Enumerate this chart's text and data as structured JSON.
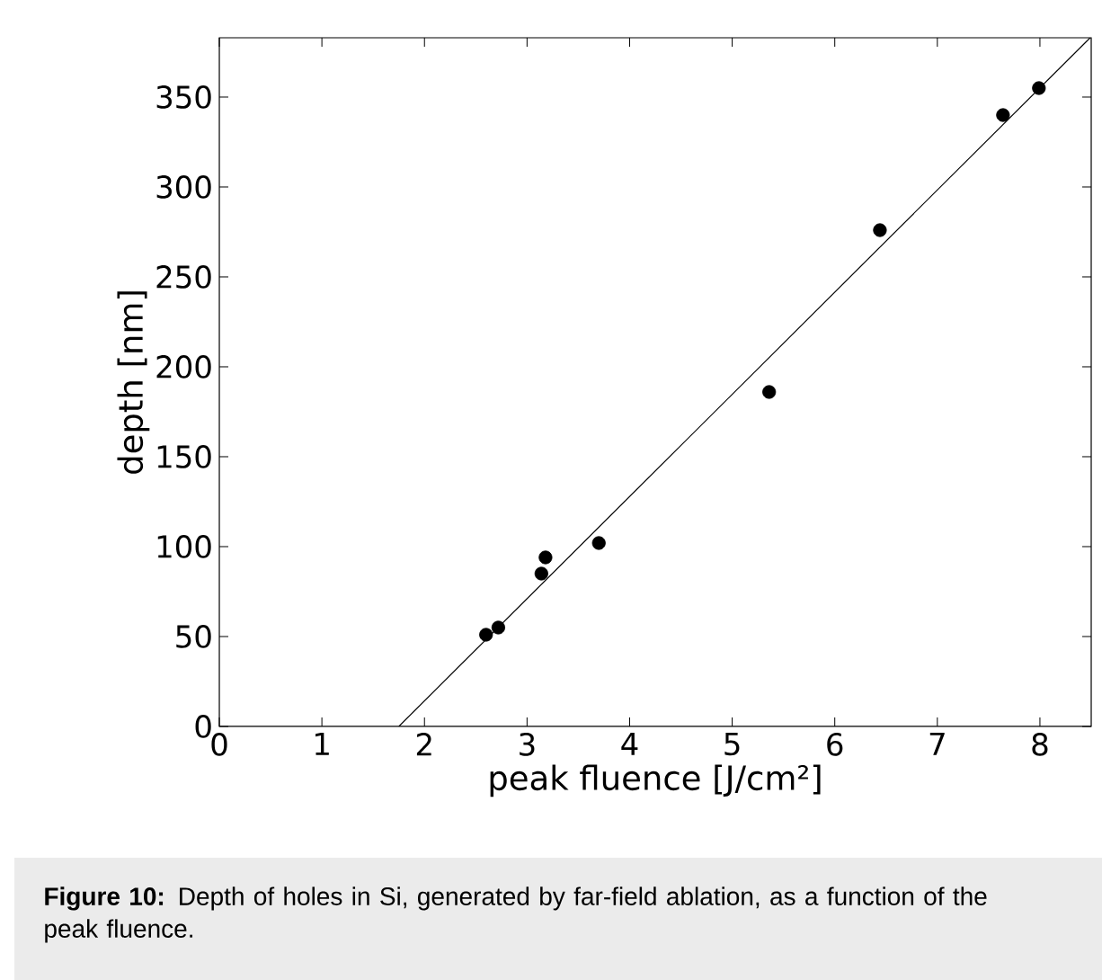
{
  "chart_data": {
    "type": "scatter",
    "xlabel": "peak fluence [J/cm²]",
    "ylabel": "depth [nm]",
    "xlim": [
      0,
      8.5
    ],
    "ylim": [
      0,
      383
    ],
    "xticks": [
      0,
      1,
      2,
      3,
      4,
      5,
      6,
      7,
      8
    ],
    "yticks": [
      0,
      50,
      100,
      150,
      200,
      250,
      300,
      350
    ],
    "grid": false,
    "series": [
      {
        "marker": "circle",
        "color": "#000000",
        "x": [
          2.6,
          2.72,
          3.14,
          3.18,
          3.7,
          5.36,
          6.44,
          7.64,
          7.99
        ],
        "values": [
          51,
          55,
          85,
          94,
          102,
          186,
          276,
          340,
          355
        ]
      },
      {
        "type": "line",
        "marker": "none",
        "color": "#000000",
        "x": [
          1.75,
          8.49
        ],
        "values": [
          0,
          383
        ]
      }
    ],
    "annotations": [
      "**Figure 10:** Depth of holes in Si, generated by far-field ablation, as a function of the peak fluence."
    ]
  }
}
